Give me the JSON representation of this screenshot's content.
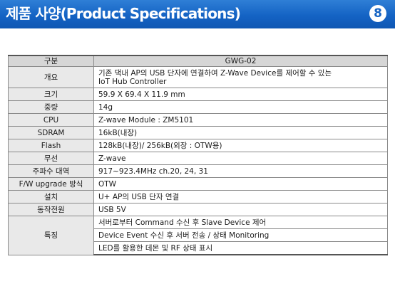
{
  "header": {
    "title": "제품 사양(Product Specifications)",
    "page_number": "8"
  },
  "table": {
    "headers": [
      "구분",
      "GWG-02"
    ],
    "rows": [
      {
        "label": "개요",
        "lines": [
          "기존 댁내 AP의 USB 단자에 연결하여 Z-Wave Device를 제어할 수 있는",
          "IoT Hub Controller"
        ]
      },
      {
        "label": "크기",
        "value": "59.9 X 69.4 X 11.9 mm"
      },
      {
        "label": "중량",
        "value": "14g"
      },
      {
        "label": "CPU",
        "value": "Z-wave Module : ZM5101"
      },
      {
        "label": "SDRAM",
        "value": "16kB(내장)"
      },
      {
        "label": "Flash",
        "value": "128kB(내장)/ 256kB(외장 : OTW용)"
      },
      {
        "label": "무선",
        "value": "Z-wave"
      },
      {
        "label": "주파수 대역",
        "value": "917~923.4MHz ch.20, 24, 31"
      },
      {
        "label": "F/W upgrade 방식",
        "value": "OTW"
      },
      {
        "label": "설치",
        "value": "U+ AP의 USB 단자 연결"
      },
      {
        "label": "동작전원",
        "value": "USB 5V"
      }
    ],
    "features": {
      "label": "특징",
      "items": [
        "서버로부터 Command 수신 후 Slave Device 제어",
        "Device Event 수신 후 서버 전송 / 상태 Monitoring",
        "LED를 활용한 데몬 및 RF 상태 표시"
      ]
    }
  }
}
